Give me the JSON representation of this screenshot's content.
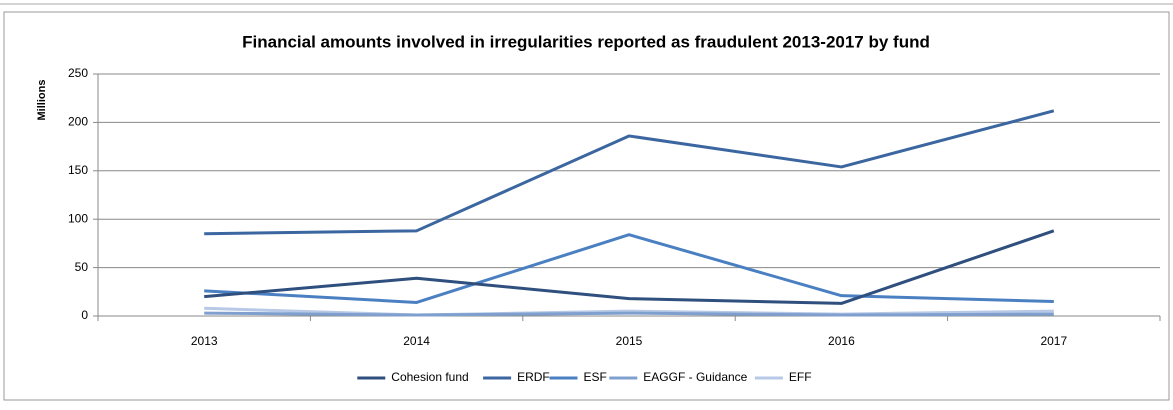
{
  "chart_data": {
    "type": "line",
    "title": "Financial amounts involved in irregularities reported as fraudulent 2013-2017 by fund",
    "y_label": "Millions",
    "categories": [
      "2013",
      "2014",
      "2015",
      "2016",
      "2017"
    ],
    "series": [
      {
        "name": "Cohesion fund",
        "color": "#2f4f7e",
        "values": [
          20,
          39,
          18,
          13,
          88
        ]
      },
      {
        "name": "ERDF",
        "color": "#3b66a0",
        "values": [
          85,
          88,
          186,
          154,
          212
        ]
      },
      {
        "name": "ESF",
        "color": "#4a80c2",
        "values": [
          26,
          14,
          84,
          21,
          15
        ]
      },
      {
        "name": "EAGGF - Guidance",
        "color": "#7fa0cf",
        "values": [
          3,
          1,
          3,
          1,
          2
        ]
      },
      {
        "name": "EFF",
        "color": "#b7c9e6",
        "values": [
          8,
          1,
          5,
          2,
          5
        ]
      }
    ],
    "ylim": [
      0,
      250
    ],
    "yticks": [
      0,
      50,
      100,
      150,
      200,
      250
    ],
    "grid": true,
    "legend": "bottom"
  }
}
